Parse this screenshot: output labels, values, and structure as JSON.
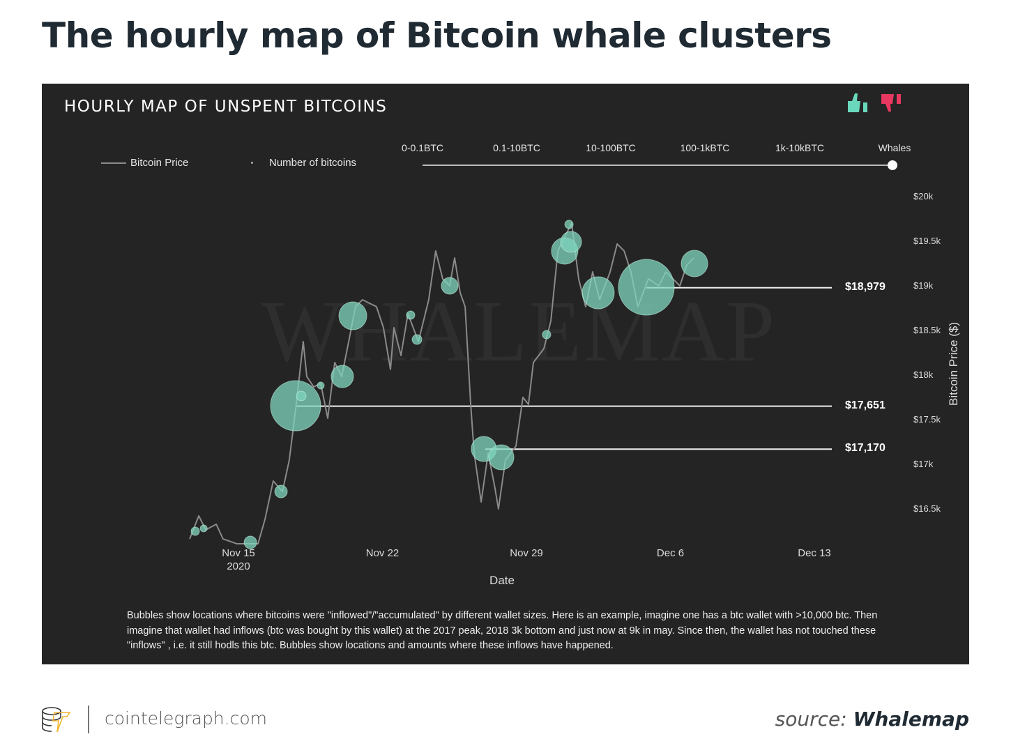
{
  "title": "The hourly map of Bitcoin whale clusters",
  "panel_title": "HOURLY MAP OF UNSPENT BITCOINS",
  "icons": {
    "like": "thumbs-up-icon",
    "dislike": "thumbs-down-icon"
  },
  "colors": {
    "bubble": "#7fd6bd",
    "like": "#6ad8bc",
    "dislike": "#e8385f",
    "line": "#8a8a8a"
  },
  "legend": {
    "price": "Bitcoin Price",
    "count": "Number of bitcoins"
  },
  "slider": {
    "labels": [
      "0-0.1BTC",
      "0.1-10BTC",
      "10-100BTC",
      "100-1kBTC",
      "1k-10kBTC",
      "Whales"
    ],
    "selected": "Whales"
  },
  "watermark": "WHALEMAP",
  "chart_data": {
    "type": "scatter",
    "title": "HOURLY MAP OF UNSPENT BITCOINS",
    "xlabel": "Date",
    "ylabel": "Bitcoin Price ($)",
    "x_unit": "days since Nov 15 2020",
    "xlim": [
      -2.5,
      27
    ],
    "ylim": [
      16000,
      20000
    ],
    "x_ticks": [
      {
        "v": 0,
        "l": "Nov 15",
        "l2": "2020"
      },
      {
        "v": 7,
        "l": "Nov 22"
      },
      {
        "v": 14,
        "l": "Nov 29"
      },
      {
        "v": 21,
        "l": "Dec 6"
      },
      {
        "v": 28,
        "l": "Dec 13"
      }
    ],
    "y_ticks": [
      {
        "v": 20000,
        "l": "$20k"
      },
      {
        "v": 19500,
        "l": "$19.5k"
      },
      {
        "v": 19000,
        "l": "$19k"
      },
      {
        "v": 18500,
        "l": "$18.5k"
      },
      {
        "v": 18000,
        "l": "$18k"
      },
      {
        "v": 17500,
        "l": "$17.5k"
      },
      {
        "v": 17000,
        "l": "$17k"
      },
      {
        "v": 16500,
        "l": "$16.5k"
      }
    ],
    "price_series": [
      [
        -2.37,
        16164
      ],
      [
        -1.93,
        16422
      ],
      [
        -1.59,
        16266
      ],
      [
        -1.08,
        16328
      ],
      [
        -0.75,
        16164
      ],
      [
        -0.07,
        16109
      ],
      [
        0.95,
        16109
      ],
      [
        1.29,
        16383
      ],
      [
        1.69,
        16813
      ],
      [
        2.14,
        16695
      ],
      [
        2.47,
        17047
      ],
      [
        2.81,
        17672
      ],
      [
        3.15,
        18375
      ],
      [
        3.32,
        17984
      ],
      [
        3.66,
        17867
      ],
      [
        4.0,
        17906
      ],
      [
        4.34,
        17516
      ],
      [
        4.68,
        18141
      ],
      [
        5.02,
        17984
      ],
      [
        5.36,
        18375
      ],
      [
        5.69,
        18766
      ],
      [
        6.03,
        18844
      ],
      [
        6.71,
        18766
      ],
      [
        7.05,
        18531
      ],
      [
        7.39,
        18063
      ],
      [
        7.56,
        18531
      ],
      [
        7.9,
        18219
      ],
      [
        8.24,
        18688
      ],
      [
        8.75,
        18375
      ],
      [
        9.25,
        18844
      ],
      [
        9.59,
        19391
      ],
      [
        9.93,
        19078
      ],
      [
        10.27,
        19000
      ],
      [
        10.51,
        19313
      ],
      [
        10.78,
        18922
      ],
      [
        11.02,
        18766
      ],
      [
        11.29,
        17672
      ],
      [
        11.46,
        17125
      ],
      [
        11.8,
        16578
      ],
      [
        12.14,
        17125
      ],
      [
        12.47,
        16734
      ],
      [
        12.64,
        16500
      ],
      [
        12.98,
        17047
      ],
      [
        13.49,
        17203
      ],
      [
        13.83,
        17750
      ],
      [
        14.1,
        17672
      ],
      [
        14.34,
        18141
      ],
      [
        14.85,
        18297
      ],
      [
        15.19,
        18609
      ],
      [
        15.53,
        19391
      ],
      [
        15.86,
        19547
      ],
      [
        16.2,
        19703
      ],
      [
        16.54,
        19078
      ],
      [
        16.88,
        18766
      ],
      [
        17.22,
        19156
      ],
      [
        17.56,
        18844
      ],
      [
        18.07,
        19156
      ],
      [
        18.41,
        19469
      ],
      [
        18.75,
        19391
      ],
      [
        19.08,
        19156
      ],
      [
        19.42,
        18766
      ],
      [
        19.93,
        19078
      ],
      [
        20.44,
        19000
      ],
      [
        20.78,
        19156
      ],
      [
        21.12,
        19078
      ],
      [
        21.46,
        19000
      ],
      [
        21.8,
        19234
      ],
      [
        22.14,
        19313
      ]
    ],
    "bubbles": [
      [
        2.78,
        17656,
        36
      ],
      [
        5.56,
        18664,
        20
      ],
      [
        5.05,
        17984,
        16
      ],
      [
        11.93,
        17172,
        18
      ],
      [
        12.78,
        17078,
        18
      ],
      [
        15.86,
        19391,
        19
      ],
      [
        16.17,
        19492,
        15
      ],
      [
        17.49,
        18922,
        23
      ],
      [
        19.83,
        18984,
        40
      ],
      [
        22.17,
        19250,
        19
      ],
      [
        10.27,
        19000,
        12
      ],
      [
        2.07,
        16695,
        9
      ],
      [
        0.58,
        16125,
        9
      ],
      [
        -2.1,
        16250,
        6
      ],
      [
        -1.69,
        16281,
        5
      ],
      [
        8.68,
        18398,
        7
      ],
      [
        8.37,
        18672,
        6
      ],
      [
        16.07,
        19688,
        6
      ],
      [
        14.98,
        18453,
        6
      ],
      [
        3.05,
        17766,
        7
      ],
      [
        4.0,
        17883,
        5
      ]
    ],
    "levels": [
      {
        "price": 18979,
        "label": "$18,979",
        "from": 19.83
      },
      {
        "price": 17651,
        "label": "$17,651",
        "from": 2.78
      },
      {
        "price": 17170,
        "label": "$17,170",
        "from": 12.0
      }
    ]
  },
  "note": "Bubbles show locations where bitcoins were \"inflowed\"/\"accumulated\" by different wallet sizes. Here is an example, imagine one has a btc wallet with >10,000 btc. Then imagine that wallet had inflows (btc was bought by this wallet) at the 2017 peak, 2018 3k bottom and just now at 9k in may. Since then, the wallet has not touched these \"inflows\" , i.e. it still hodls this btc. Bubbles show locations and amounts where these inflows have happened.",
  "footer": {
    "site": "cointelegraph.com",
    "source_prefix": "source:",
    "source": "Whalemap"
  }
}
